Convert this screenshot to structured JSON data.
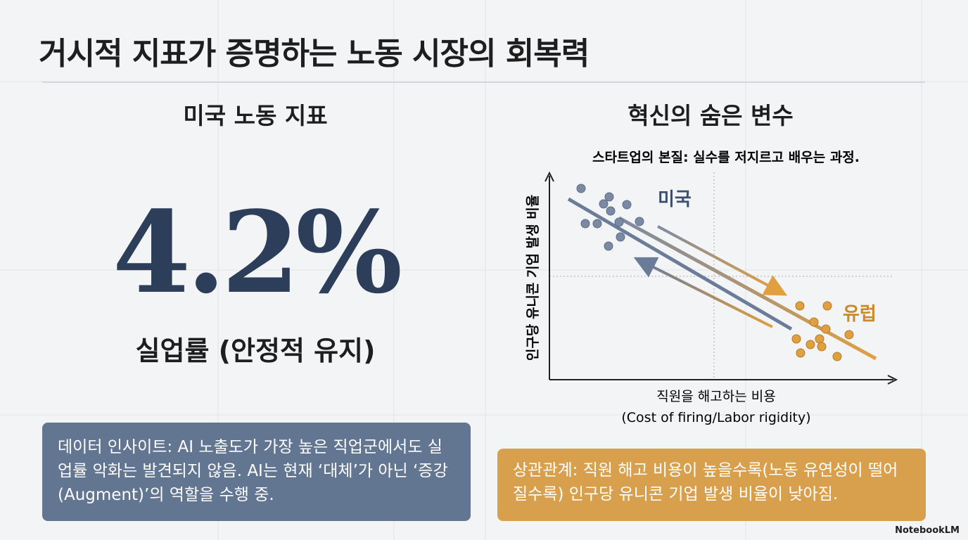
{
  "title": "거시적 지표가 증명하는 노동 시장의 회복력",
  "left": {
    "heading": "미국 노동 지표",
    "stat": "4.2%",
    "stat_label": "실업률 (안정적 유지)",
    "insight": "데이터 인사이트: AI 노출도가 가장 높은 직업군에서도 실업률 악화는 발견되지 않음. AI는 현재 ‘대체’가 아닌 ‘증강(Augment)’의 역할을 수행 중."
  },
  "right": {
    "heading": "혁신의 숨은 변수",
    "chart_caption": "스타트업의 본질: 실수를 저지르고 배우는 과정.",
    "y_label": "인구당 유니콘 기업 발생 비율",
    "x_label": "직원을 해고하는 비용",
    "x_label_sub": "(Cost of firing/Labor rigidity)",
    "cluster_labels": [
      "미국",
      "유럽"
    ],
    "insight": "상관관계: 직원 해고 비용이 높을수록(노동 유연성이 떨어질수록) 인구당 유니콘 기업 발생 비율이 낮아짐."
  },
  "footer": {
    "brand": "NotebookLM"
  }
}
